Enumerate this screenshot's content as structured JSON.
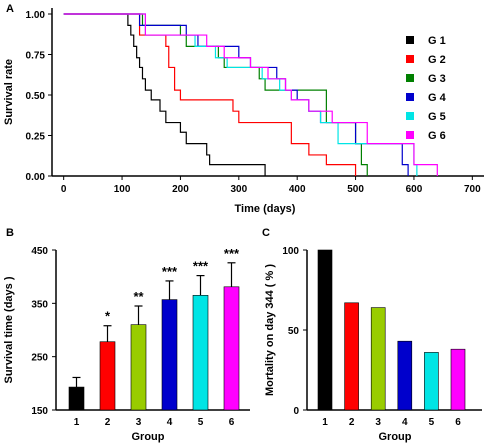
{
  "figure": {
    "panel_labels": [
      "A",
      "B",
      "C"
    ]
  },
  "chart_data": [
    {
      "id": "A",
      "type": "line",
      "step": true,
      "xlabel": "Time (days)",
      "ylabel": "Survival rate",
      "xlim": [
        -20,
        720
      ],
      "ylim": [
        0,
        1
      ],
      "xticks": [
        0,
        100,
        200,
        300,
        400,
        500,
        600,
        700
      ],
      "yticks": [
        0.0,
        0.25,
        0.5,
        0.75,
        1.0
      ],
      "ytick_labels": [
        "0.00",
        "0.25",
        "0.50",
        "0.75",
        "1.00"
      ],
      "legend_position": "right",
      "series": [
        {
          "name": "G 1",
          "color": "#000000",
          "x": [
            0,
            100,
            110,
            115,
            120,
            125,
            130,
            135,
            140,
            150,
            165,
            175,
            200,
            210,
            245,
            250,
            260,
            270,
            345
          ],
          "y": [
            1,
            1,
            0.93,
            0.87,
            0.8,
            0.73,
            0.67,
            0.6,
            0.53,
            0.47,
            0.4,
            0.33,
            0.27,
            0.2,
            0.13,
            0.07,
            0.07,
            0.07,
            0
          ]
        },
        {
          "name": "G 2",
          "color": "#ff0000",
          "x": [
            0,
            120,
            130,
            175,
            180,
            190,
            200,
            290,
            300,
            390,
            420,
            450,
            500
          ],
          "y": [
            1,
            1,
            0.87,
            0.8,
            0.67,
            0.53,
            0.47,
            0.4,
            0.33,
            0.2,
            0.13,
            0.07,
            0
          ]
        },
        {
          "name": "G 3",
          "color": "#008000",
          "x": [
            0,
            125,
            135,
            200,
            210,
            265,
            275,
            335,
            345,
            450,
            500,
            510,
            520
          ],
          "y": [
            1,
            1,
            0.93,
            0.87,
            0.8,
            0.73,
            0.67,
            0.6,
            0.53,
            0.33,
            0.2,
            0.07,
            0
          ]
        },
        {
          "name": "G 4",
          "color": "#0000cc",
          "x": [
            0,
            120,
            130,
            210,
            230,
            300,
            320,
            365,
            380,
            400,
            420,
            440,
            500,
            580,
            590
          ],
          "y": [
            1,
            1,
            0.93,
            0.87,
            0.8,
            0.73,
            0.67,
            0.6,
            0.53,
            0.47,
            0.4,
            0.33,
            0.2,
            0.07,
            0
          ]
        },
        {
          "name": "G 5",
          "color": "#00e5e5",
          "x": [
            0,
            125,
            140,
            225,
            260,
            280,
            340,
            370,
            390,
            420,
            440,
            470,
            600,
            605
          ],
          "y": [
            1,
            1,
            0.87,
            0.8,
            0.73,
            0.67,
            0.6,
            0.53,
            0.47,
            0.4,
            0.33,
            0.2,
            0.07,
            0
          ]
        },
        {
          "name": "G 6",
          "color": "#ff00ff",
          "x": [
            0,
            130,
            140,
            245,
            275,
            320,
            350,
            380,
            390,
            420,
            460,
            520,
            600,
            640
          ],
          "y": [
            1,
            1,
            0.87,
            0.8,
            0.73,
            0.67,
            0.6,
            0.53,
            0.47,
            0.4,
            0.33,
            0.2,
            0.07,
            0
          ]
        }
      ]
    },
    {
      "id": "B",
      "type": "bar",
      "xlabel": "Group",
      "ylabel": "Survival time  (days )",
      "ylim": [
        150,
        450
      ],
      "yticks": [
        150,
        250,
        350,
        450
      ],
      "categories": [
        "1",
        "2",
        "3",
        "4",
        "5",
        "6"
      ],
      "values": [
        193,
        278,
        310,
        357,
        365,
        381
      ],
      "errors": [
        18,
        30,
        35,
        35,
        37,
        45
      ],
      "significance": [
        "",
        "*",
        "**",
        "***",
        "***",
        "***"
      ],
      "colors": [
        "#000000",
        "#ff0000",
        "#99cc00",
        "#0000cc",
        "#00e5e5",
        "#ff00ff"
      ]
    },
    {
      "id": "C",
      "type": "bar",
      "xlabel": "Group",
      "ylabel": "Mortality on day 344 ( % )",
      "ylim": [
        0,
        100
      ],
      "yticks": [
        0,
        50,
        100
      ],
      "categories": [
        "1",
        "2",
        "3",
        "4",
        "5",
        "6"
      ],
      "values": [
        100,
        67,
        64,
        43,
        36,
        38
      ],
      "colors": [
        "#000000",
        "#ff0000",
        "#99cc00",
        "#0000cc",
        "#00e5e5",
        "#ff00ff"
      ]
    }
  ]
}
